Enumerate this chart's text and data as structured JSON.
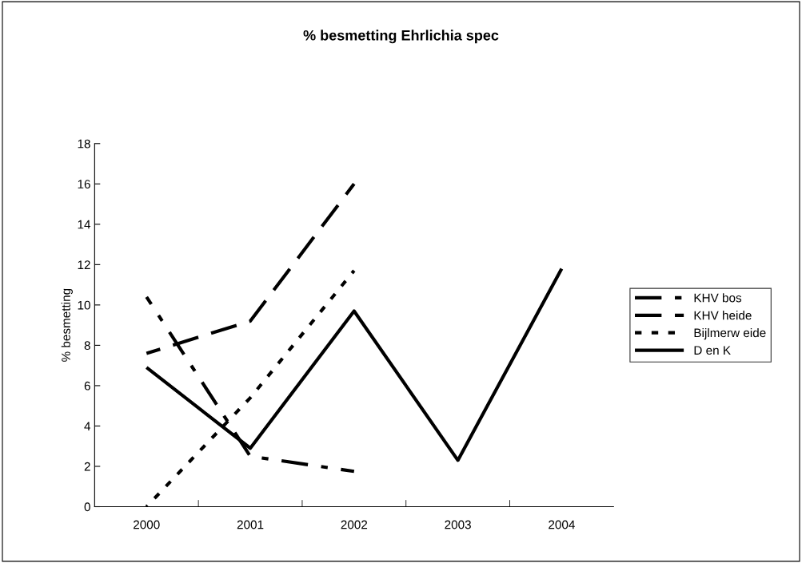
{
  "chart_data": {
    "type": "line",
    "title": "% besmetting Ehrlichia spec",
    "ylabel": "% besmetting",
    "categories": [
      "2000",
      "2001",
      "2002",
      "2003",
      "2004"
    ],
    "series": [
      {
        "name": "KHV bos",
        "color": "#000000",
        "line_style": "dashdot",
        "values": [
          10.4,
          2.5,
          1.75,
          null,
          null
        ]
      },
      {
        "name": "KHV heide",
        "color": "#000000",
        "line_style": "dashed",
        "values": [
          7.6,
          9.2,
          16.0,
          null,
          null
        ]
      },
      {
        "name": "Bijlmerw eide",
        "color": "#000000",
        "line_style": "dotted",
        "values": [
          0,
          5.4,
          11.7,
          null,
          null
        ]
      },
      {
        "name": "D en K",
        "color": "#000000",
        "line_style": "solid",
        "values": [
          6.9,
          2.9,
          9.7,
          2.3,
          11.8
        ]
      }
    ],
    "ylim": [
      0,
      18
    ],
    "yticks": [
      0,
      2,
      4,
      6,
      8,
      10,
      12,
      14,
      16,
      18
    ],
    "grid": false,
    "legend": "right",
    "marker": "none"
  }
}
